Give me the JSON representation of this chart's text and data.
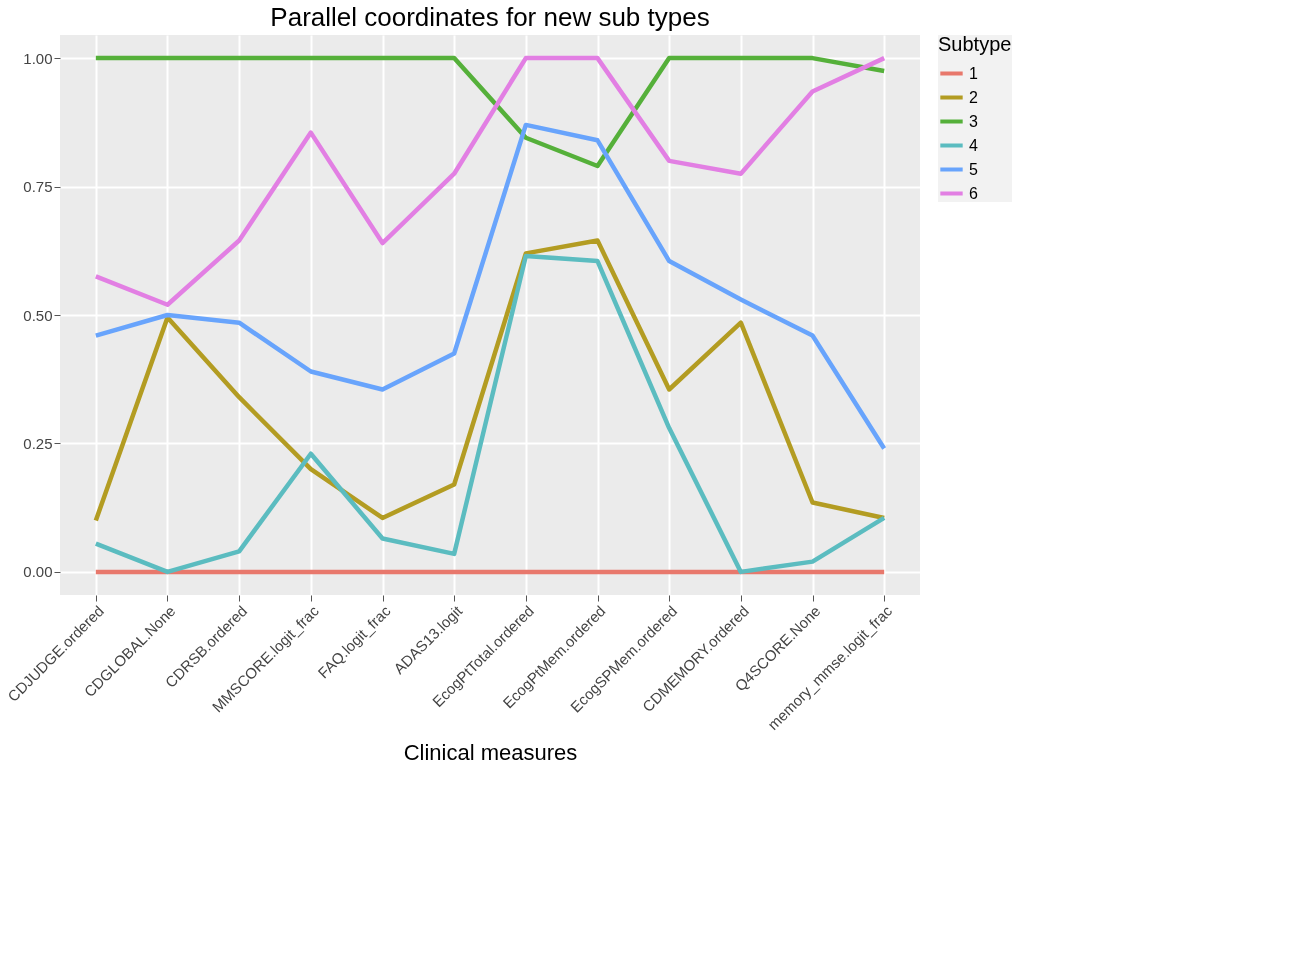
{
  "chart_data": {
    "type": "line",
    "title": "Parallel coordinates for new sub types",
    "xlabel": "Clinical measures",
    "legend_title": "Subtype",
    "categories": [
      "CDJUDGE.ordered",
      "CDGLOBAL.None",
      "CDRSB.ordered",
      "MMSCORE.logit_frac",
      "FAQ.logit_frac",
      "ADAS13.logit",
      "EcogPtTotal.ordered",
      "EcogPtMem.ordered",
      "EcogSPMem.ordered",
      "CDMEMORY.ordered",
      "Q4SCORE.None",
      "memory_mmse.logit_frac"
    ],
    "series": [
      {
        "name": "1",
        "color": "#e8786c",
        "values": [
          0,
          0,
          0,
          0,
          0,
          0,
          0,
          0,
          0,
          0,
          0,
          0
        ]
      },
      {
        "name": "2",
        "color": "#b39c22",
        "values": [
          0.1,
          0.495,
          0.34,
          0.2,
          0.105,
          0.17,
          0.62,
          0.645,
          0.355,
          0.485,
          0.135,
          0.105
        ]
      },
      {
        "name": "3",
        "color": "#55b03a",
        "values": [
          1,
          1,
          1,
          1,
          1,
          1,
          0.845,
          0.79,
          1,
          1,
          1,
          0.975
        ]
      },
      {
        "name": "4",
        "color": "#5bbcc0",
        "values": [
          0.055,
          0,
          0.04,
          0.23,
          0.065,
          0.035,
          0.615,
          0.605,
          0.28,
          0,
          0.02,
          0.105
        ]
      },
      {
        "name": "5",
        "color": "#68a4fc",
        "values": [
          0.46,
          0.5,
          0.485,
          0.39,
          0.355,
          0.425,
          0.87,
          0.84,
          0.605,
          0.53,
          0.46,
          0.24
        ]
      },
      {
        "name": "6",
        "color": "#e27fe3",
        "values": [
          0.575,
          0.52,
          0.645,
          0.855,
          0.64,
          0.775,
          1,
          1,
          0.8,
          0.775,
          0.935,
          1
        ]
      }
    ],
    "ylim": [
      -0.045,
      1.045
    ],
    "yticks": [
      {
        "value": 0,
        "label": "0.00"
      },
      {
        "value": 0.25,
        "label": "0.25"
      },
      {
        "value": 0.5,
        "label": "0.50"
      },
      {
        "value": 0.75,
        "label": "0.75"
      },
      {
        "value": 1,
        "label": "1.00"
      }
    ],
    "grid": true,
    "legend": "right",
    "marker": "none",
    "line_style": "solid"
  }
}
